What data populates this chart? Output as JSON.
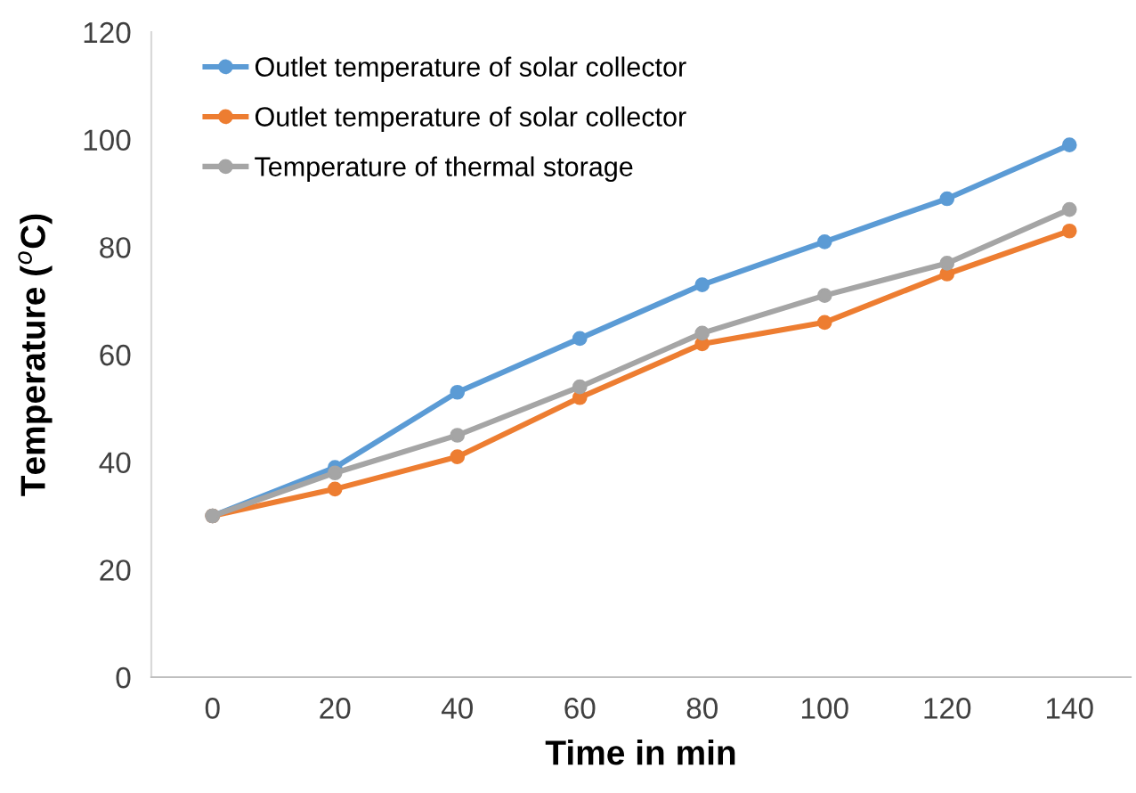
{
  "chart_data": {
    "type": "line",
    "xlabel": "Time in min",
    "ylabel": "Temperature ($^{o}$C)",
    "categories": [
      "0",
      "20",
      "40",
      "60",
      "80",
      "100",
      "120",
      "140"
    ],
    "series": [
      {
        "name": "Outlet temperature of solar collector",
        "color": "#5b9bd5",
        "values": [
          30,
          39,
          53,
          63,
          73,
          81,
          89,
          99
        ]
      },
      {
        "name": "Outlet temperature of solar collector",
        "color": "#ed7d31",
        "values": [
          30,
          35,
          41,
          52,
          62,
          66,
          75,
          83
        ]
      },
      {
        "name": "Temperature of thermal storage",
        "color": "#a5a5a5",
        "values": [
          30,
          38,
          45,
          54,
          64,
          71,
          77,
          87
        ]
      }
    ],
    "ylim": [
      0,
      120
    ],
    "yticks": [
      0,
      20,
      40,
      60,
      80,
      100,
      120
    ],
    "grid": false,
    "legend": "top left",
    "marker": "circle",
    "line_style": "solid"
  }
}
